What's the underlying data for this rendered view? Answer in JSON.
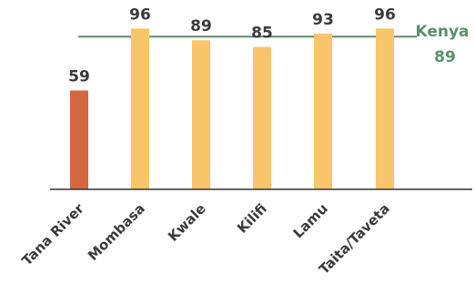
{
  "chart_data": {
    "type": "bar",
    "categories": [
      "Tana River",
      "Mombasa",
      "Kwale",
      "Kilifi",
      "Lamu",
      "Taita/Taveta"
    ],
    "values": [
      59,
      96,
      89,
      85,
      93,
      96
    ],
    "data_labels": [
      "59",
      "96",
      "89",
      "85",
      "93",
      "96"
    ],
    "highlight_index": 0,
    "reference_line": {
      "label": "Kenya",
      "value": 89,
      "value_label": "89"
    },
    "ylim": [
      0,
      100
    ],
    "grid": false,
    "colors": {
      "highlight": "#d2683f",
      "bar": "#f8c56b",
      "reference": "#5b8f6b",
      "axis": "#333333",
      "text": "#3a3a3a"
    }
  }
}
